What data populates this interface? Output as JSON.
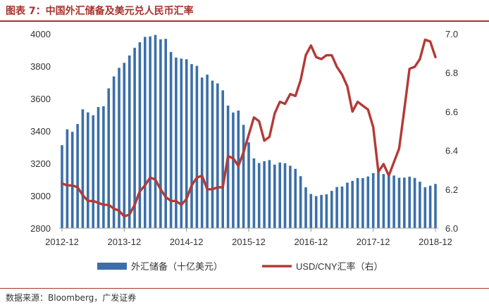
{
  "header": {
    "title": "图表 7：中国外汇储备及美元兑人民币汇率"
  },
  "footer": {
    "source": "数据来源：Bloomberg，广发证券"
  },
  "colors": {
    "bar": "#3b6fa9",
    "line": "#b33a37",
    "accent": "#a8322c"
  },
  "chart_data": {
    "type": "bar+line",
    "title": "",
    "x_tick_labels": [
      "2012-12",
      "2013-12",
      "2014-12",
      "2015-12",
      "2016-12",
      "2017-12",
      "2018-12"
    ],
    "y_left": {
      "ticks": [
        2800,
        3000,
        3200,
        3400,
        3600,
        3800,
        4000
      ],
      "ylim": [
        2800,
        4000
      ]
    },
    "y_right": {
      "ticks": [
        "6.0",
        "6.2",
        "6.4",
        "6.6",
        "6.8",
        "7.0"
      ],
      "ylim": [
        6.0,
        7.0
      ]
    },
    "legend_position": "bottom",
    "grid": false,
    "series": [
      {
        "name": "外汇储备（十亿美元）",
        "type": "bar",
        "axis": "left",
        "x": [
          "2012-12",
          "2013-01",
          "2013-02",
          "2013-03",
          "2013-04",
          "2013-05",
          "2013-06",
          "2013-07",
          "2013-08",
          "2013-09",
          "2013-10",
          "2013-11",
          "2013-12",
          "2014-01",
          "2014-02",
          "2014-03",
          "2014-04",
          "2014-05",
          "2014-06",
          "2014-07",
          "2014-08",
          "2014-09",
          "2014-10",
          "2014-11",
          "2014-12",
          "2015-01",
          "2015-02",
          "2015-03",
          "2015-04",
          "2015-05",
          "2015-06",
          "2015-07",
          "2015-08",
          "2015-09",
          "2015-10",
          "2015-11",
          "2015-12",
          "2016-01",
          "2016-02",
          "2016-03",
          "2016-04",
          "2016-05",
          "2016-06",
          "2016-07",
          "2016-08",
          "2016-09",
          "2016-10",
          "2016-11",
          "2016-12",
          "2017-01",
          "2017-02",
          "2017-03",
          "2017-04",
          "2017-05",
          "2017-06",
          "2017-07",
          "2017-08",
          "2017-09",
          "2017-10",
          "2017-11",
          "2017-12",
          "2018-01",
          "2018-02",
          "2018-03",
          "2018-04",
          "2018-05",
          "2018-06",
          "2018-07",
          "2018-08",
          "2018-09",
          "2018-10",
          "2018-11",
          "2018-12"
        ],
        "values": [
          3312,
          3410,
          3395,
          3443,
          3534,
          3515,
          3497,
          3548,
          3553,
          3663,
          3737,
          3790,
          3821,
          3866,
          3914,
          3948,
          3981,
          3984,
          3993,
          3966,
          3969,
          3888,
          3853,
          3847,
          3843,
          3813,
          3802,
          3730,
          3748,
          3711,
          3694,
          3651,
          3557,
          3514,
          3526,
          3438,
          3330,
          3231,
          3202,
          3213,
          3220,
          3192,
          3205,
          3201,
          3185,
          3166,
          3121,
          3052,
          3011,
          2998,
          3005,
          3009,
          3030,
          3054,
          3057,
          3081,
          3092,
          3109,
          3109,
          3119,
          3140,
          3161,
          3134,
          3143,
          3125,
          3111,
          3112,
          3118,
          3110,
          3087,
          3053,
          3062,
          3073
        ]
      },
      {
        "name": "USD/CNY汇率（右）",
        "type": "line",
        "axis": "right",
        "x": [
          "2012-12",
          "2013-01",
          "2013-02",
          "2013-03",
          "2013-04",
          "2013-05",
          "2013-06",
          "2013-07",
          "2013-08",
          "2013-09",
          "2013-10",
          "2013-11",
          "2013-12",
          "2014-01",
          "2014-02",
          "2014-03",
          "2014-04",
          "2014-05",
          "2014-06",
          "2014-07",
          "2014-08",
          "2014-09",
          "2014-10",
          "2014-11",
          "2014-12",
          "2015-01",
          "2015-02",
          "2015-03",
          "2015-04",
          "2015-05",
          "2015-06",
          "2015-07",
          "2015-08",
          "2015-09",
          "2015-10",
          "2015-11",
          "2015-12",
          "2016-01",
          "2016-02",
          "2016-03",
          "2016-04",
          "2016-05",
          "2016-06",
          "2016-07",
          "2016-08",
          "2016-09",
          "2016-10",
          "2016-11",
          "2016-12",
          "2017-01",
          "2017-02",
          "2017-03",
          "2017-04",
          "2017-05",
          "2017-06",
          "2017-07",
          "2017-08",
          "2017-09",
          "2017-10",
          "2017-11",
          "2017-12",
          "2018-01",
          "2018-02",
          "2018-03",
          "2018-04",
          "2018-05",
          "2018-06",
          "2018-07",
          "2018-08",
          "2018-09",
          "2018-10",
          "2018-11",
          "2018-12"
        ],
        "values": [
          6.23,
          6.22,
          6.22,
          6.21,
          6.17,
          6.14,
          6.14,
          6.13,
          6.12,
          6.12,
          6.1,
          6.09,
          6.06,
          6.07,
          6.12,
          6.19,
          6.22,
          6.26,
          6.25,
          6.2,
          6.16,
          6.14,
          6.14,
          6.12,
          6.15,
          6.22,
          6.26,
          6.27,
          6.2,
          6.2,
          6.21,
          6.21,
          6.37,
          6.36,
          6.32,
          6.39,
          6.48,
          6.57,
          6.55,
          6.45,
          6.47,
          6.59,
          6.65,
          6.64,
          6.69,
          6.68,
          6.76,
          6.89,
          6.94,
          6.88,
          6.87,
          6.89,
          6.89,
          6.83,
          6.79,
          6.73,
          6.6,
          6.65,
          6.63,
          6.61,
          6.52,
          6.29,
          6.33,
          6.27,
          6.34,
          6.41,
          6.61,
          6.82,
          6.83,
          6.87,
          6.97,
          6.96,
          6.88
        ]
      }
    ],
    "legend": [
      "外汇储备（十亿美元）",
      "USD/CNY汇率（右）"
    ]
  }
}
